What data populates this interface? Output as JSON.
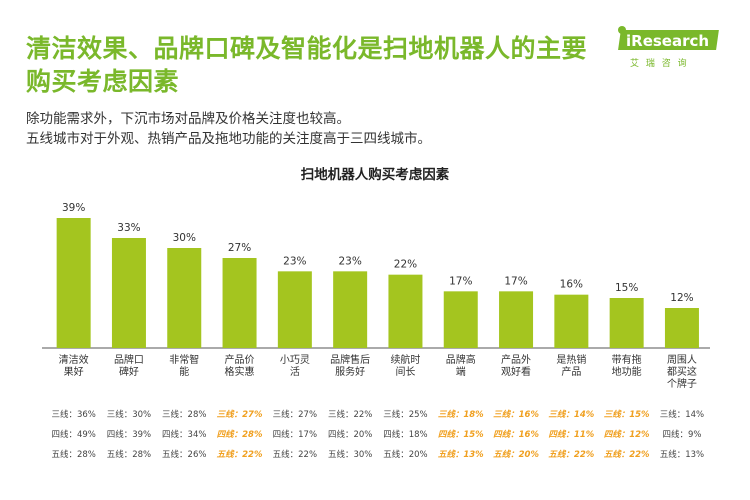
{
  "header": {
    "headline_line1": "清洁效果、品牌口碑及智能化是扫地机器人的主要",
    "headline_line2": "购买考虑因素",
    "subtitle_line1": "除功能需求外，下沉市场对品牌及价格关注度也较高。",
    "subtitle_line2": "五线城市对于外观、热销产品及拖地功能的关注度高于三四线城市。"
  },
  "logo": {
    "text": "iResearch",
    "subtext": "艾 瑞 咨 询",
    "color": "#7ab82b"
  },
  "colors": {
    "bar": "#a4c51f",
    "axis": "#555555",
    "highlight": "#f0a020"
  },
  "chart_data": {
    "type": "bar",
    "title": "扫地机器人购买考虑因素",
    "xlabel": "",
    "ylabel": "",
    "ylim": [
      0,
      45
    ],
    "categories": [
      [
        "清洁效",
        "果好"
      ],
      [
        "品牌口",
        "碑好"
      ],
      [
        "非常智",
        "能"
      ],
      [
        "产品价",
        "格实惠"
      ],
      [
        "小巧灵",
        "活"
      ],
      [
        "品牌售后",
        "服务好"
      ],
      [
        "续航时",
        "间长"
      ],
      [
        "品牌高",
        "端"
      ],
      [
        "产品外",
        "观好看"
      ],
      [
        "是热销",
        "产品"
      ],
      [
        "带有拖",
        "地功能"
      ],
      [
        "周围人",
        "都买这",
        "个牌子"
      ]
    ],
    "values": [
      39,
      33,
      30,
      27,
      23,
      23,
      22,
      17,
      17,
      16,
      15,
      12
    ],
    "value_labels": [
      "39%",
      "33%",
      "30%",
      "27%",
      "23%",
      "23%",
      "22%",
      "17%",
      "17%",
      "16%",
      "15%",
      "12%"
    ],
    "tier_rows": [
      {
        "name": "三线",
        "labels": [
          "三线：36%",
          "三线：30%",
          "三线：28%",
          "三线：27%",
          "三线：27%",
          "三线：22%",
          "三线：25%",
          "三线：18%",
          "三线：16%",
          "三线：14%",
          "三线：15%",
          "三线：14%"
        ],
        "values": [
          36,
          30,
          28,
          27,
          27,
          22,
          25,
          18,
          16,
          14,
          15,
          14
        ],
        "highlight": [
          false,
          false,
          false,
          true,
          false,
          false,
          false,
          true,
          true,
          true,
          true,
          false
        ]
      },
      {
        "name": "四线",
        "labels": [
          "四线：49%",
          "四线：39%",
          "四线：34%",
          "四线：28%",
          "四线：17%",
          "四线：20%",
          "四线：18%",
          "四线：15%",
          "四线：16%",
          "四线：11%",
          "四线：12%",
          "四线：9%"
        ],
        "values": [
          49,
          39,
          34,
          28,
          17,
          20,
          18,
          15,
          16,
          11,
          12,
          9
        ],
        "highlight": [
          false,
          false,
          false,
          true,
          false,
          false,
          false,
          true,
          true,
          true,
          true,
          false
        ]
      },
      {
        "name": "五线",
        "labels": [
          "五线：28%",
          "五线：28%",
          "五线：26%",
          "五线：22%",
          "五线：22%",
          "五线：30%",
          "五线：20%",
          "五线：13%",
          "五线：20%",
          "五线：22%",
          "五线：22%",
          "五线：13%"
        ],
        "values": [
          28,
          28,
          26,
          22,
          22,
          30,
          20,
          13,
          20,
          22,
          22,
          13
        ],
        "highlight": [
          false,
          false,
          false,
          true,
          false,
          false,
          false,
          true,
          true,
          true,
          true,
          false
        ]
      }
    ],
    "grid": false,
    "legend": "none"
  }
}
